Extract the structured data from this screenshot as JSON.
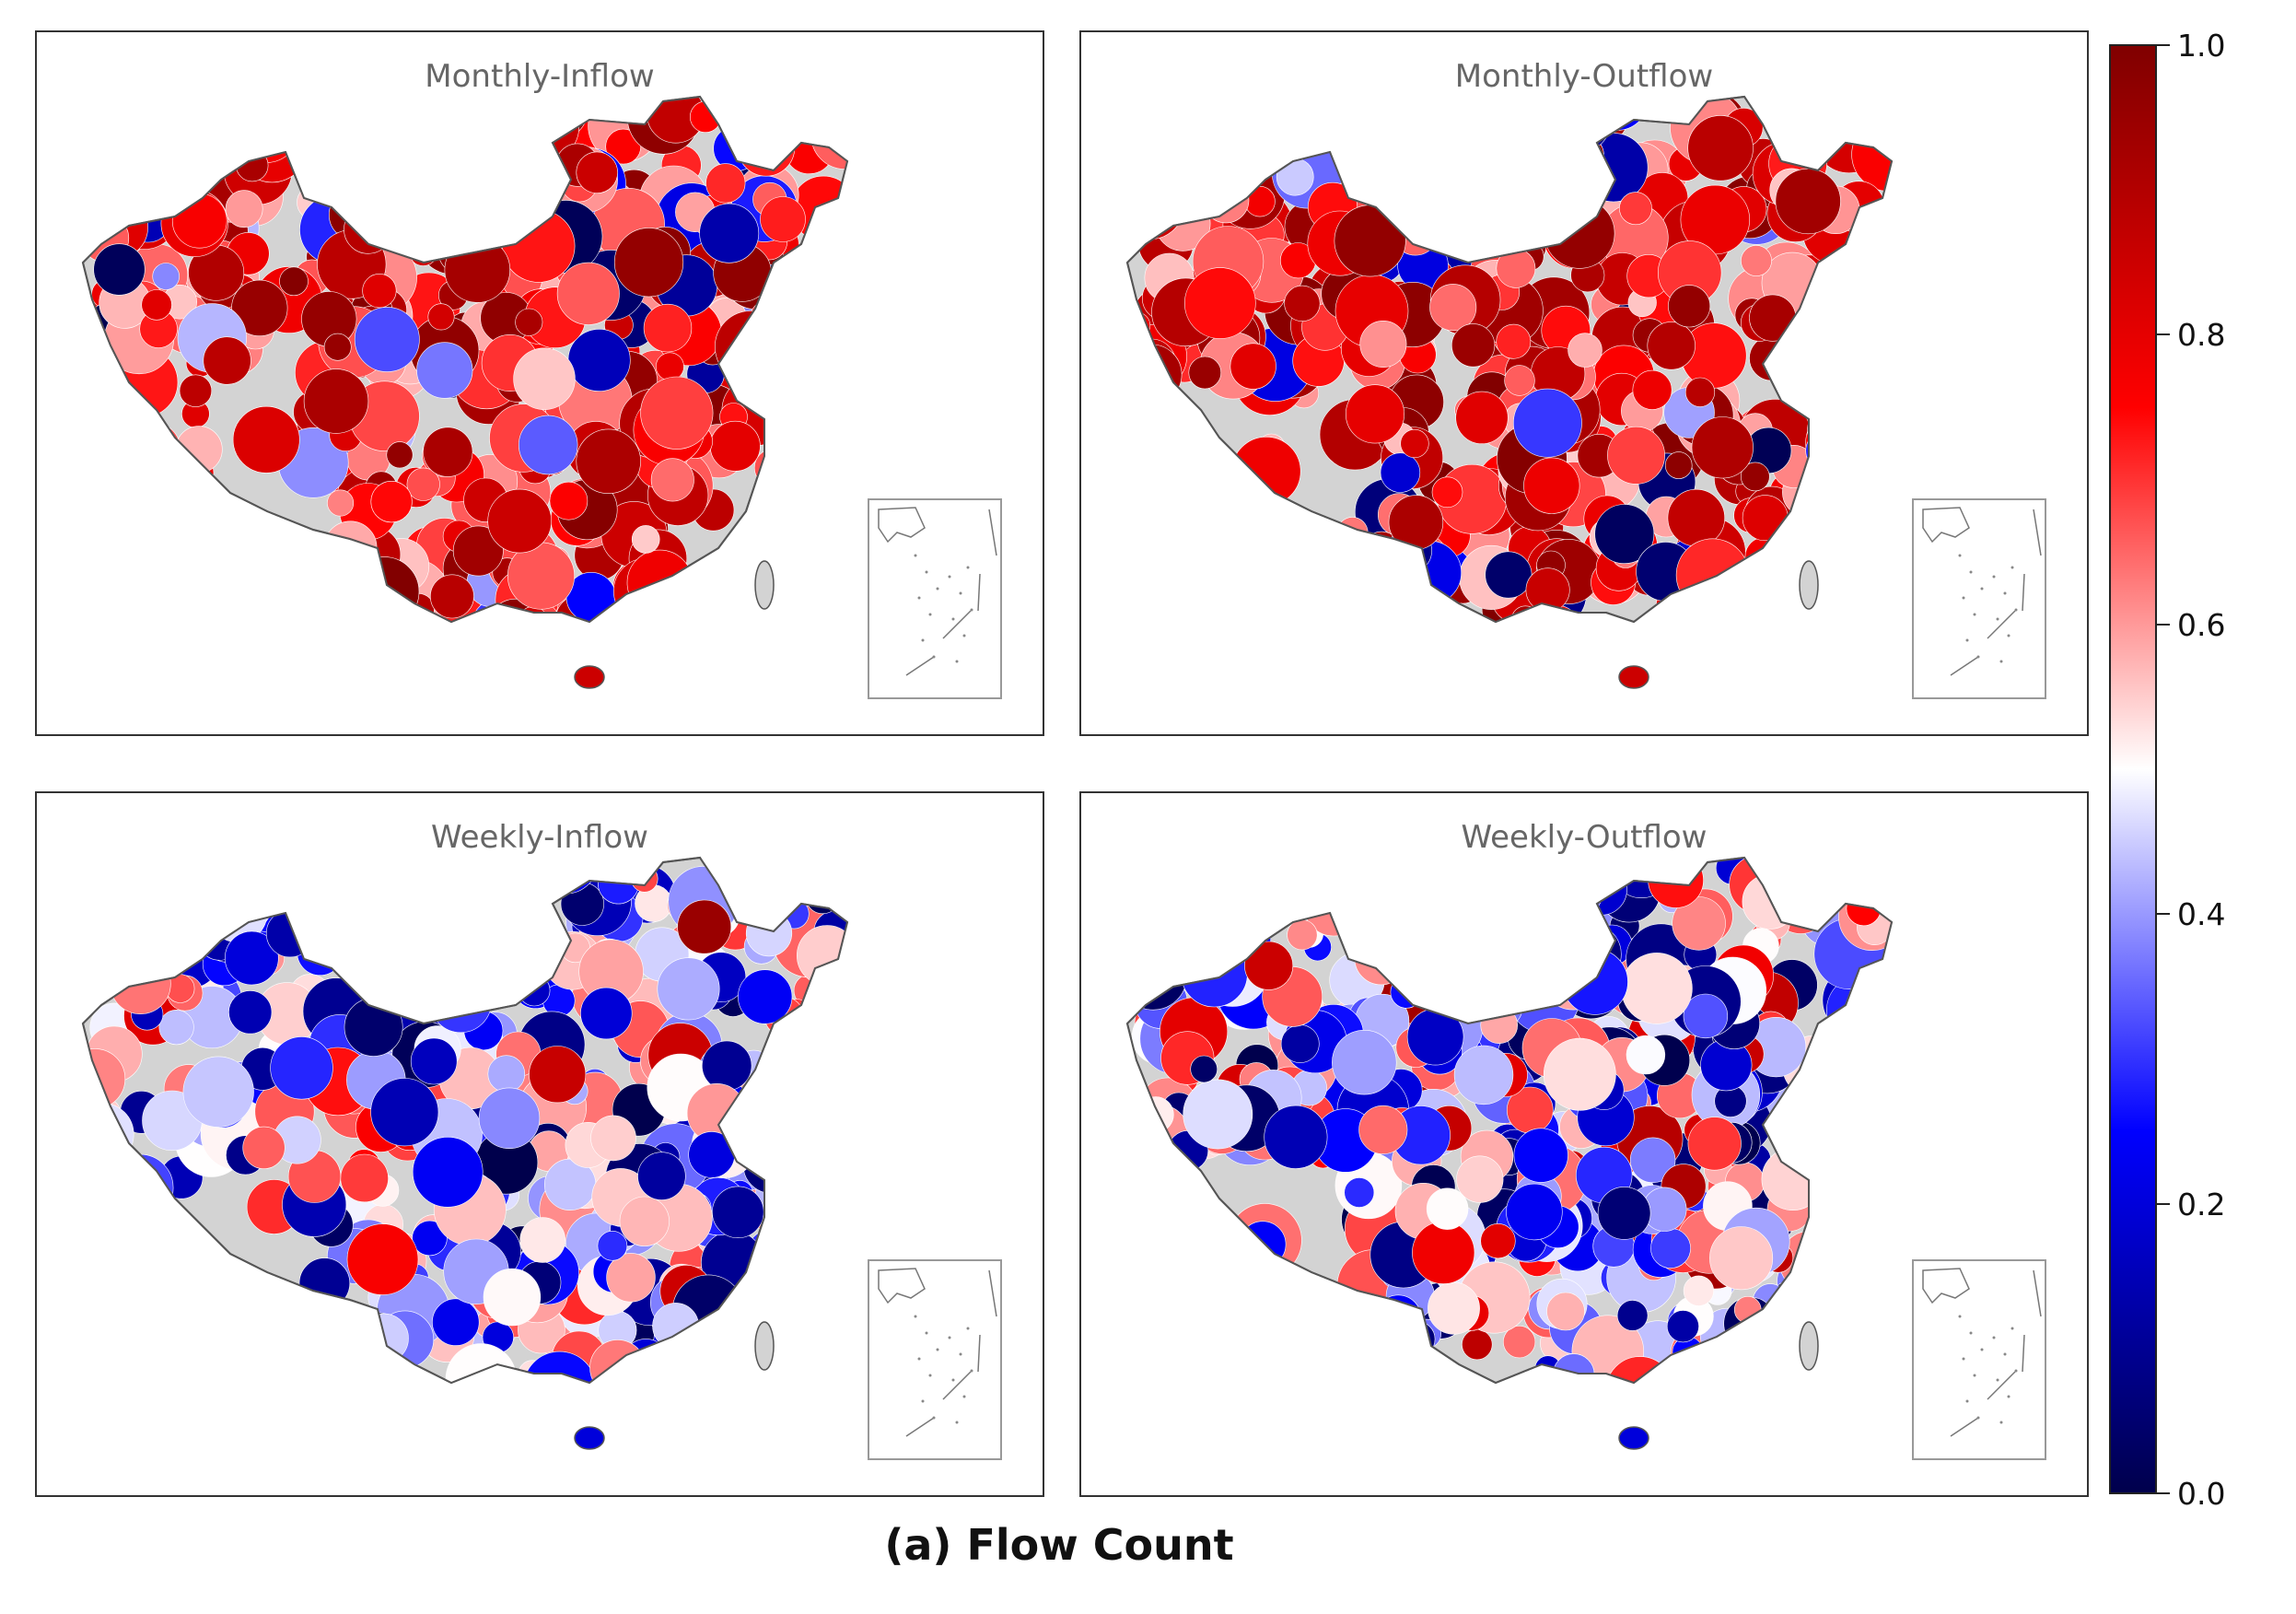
{
  "panels": [
    {
      "title": "Monthly-Inflow",
      "scheme": "red"
    },
    {
      "title": "Monthly-Outflow",
      "scheme": "red"
    },
    {
      "title": "Weekly-Inflow",
      "scheme": "blue"
    },
    {
      "title": "Weekly-Outflow",
      "scheme": "blue"
    }
  ],
  "colorbar": {
    "min": 0.0,
    "max": 1.0,
    "ticks": [
      "0.0",
      "0.2",
      "0.4",
      "0.6",
      "0.8",
      "1.0"
    ],
    "colors": {
      "low": "#00004c",
      "mid": "#ffffff",
      "high": "#800000"
    }
  },
  "caption": "(a) Flow Count",
  "colors": {
    "no_data": "#d3d3d3",
    "border": "#666666"
  }
}
